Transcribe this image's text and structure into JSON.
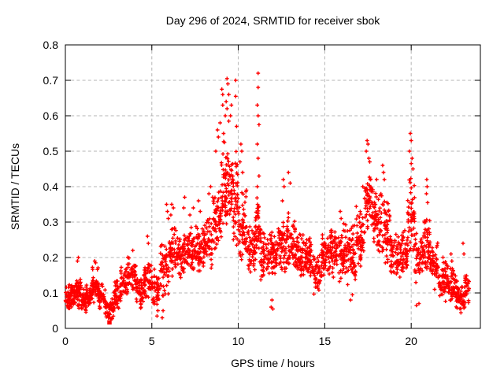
{
  "chart_data": {
    "type": "scatter",
    "title": "Day 296 of 2024, SRMTID for receiver sbok",
    "xlabel": "GPS time / hours",
    "ylabel": "SRMTID / TECUs",
    "xlim": [
      0,
      24
    ],
    "ylim": [
      0,
      0.8
    ],
    "xticks": [
      {
        "v": 0,
        "label": "0"
      },
      {
        "v": 5,
        "label": "5"
      },
      {
        "v": 10,
        "label": "10"
      },
      {
        "v": 15,
        "label": "15"
      },
      {
        "v": 20,
        "label": "20"
      }
    ],
    "yticks": [
      {
        "v": 0,
        "label": "0"
      },
      {
        "v": 0.1,
        "label": "0.1"
      },
      {
        "v": 0.2,
        "label": "0.2"
      },
      {
        "v": 0.3,
        "label": "0.3"
      },
      {
        "v": 0.4,
        "label": "0.4"
      },
      {
        "v": 0.5,
        "label": "0.5"
      },
      {
        "v": 0.6,
        "label": "0.6"
      },
      {
        "v": 0.7,
        "label": "0.7"
      },
      {
        "v": 0.8,
        "label": "0.8"
      }
    ],
    "grid": true,
    "legend": "none",
    "colors": {
      "points": "#ff0000",
      "grid": "#b4b4b4",
      "axis": "#000000",
      "background": "#ffffff"
    },
    "seed": 1296,
    "series": [
      {
        "name": "srmtid-points",
        "marker": "plus",
        "color": "#ff0000",
        "band_segments": [
          [
            0.0,
            0.3,
            0.05,
            0.13,
            35
          ],
          [
            0.3,
            0.6,
            0.04,
            0.14,
            40
          ],
          [
            0.6,
            0.9,
            0.05,
            0.17,
            40
          ],
          [
            0.9,
            1.2,
            0.04,
            0.12,
            40
          ],
          [
            1.2,
            1.5,
            0.05,
            0.13,
            40
          ],
          [
            1.5,
            1.9,
            0.06,
            0.18,
            45
          ],
          [
            1.9,
            2.3,
            0.05,
            0.13,
            45
          ],
          [
            2.3,
            2.8,
            0.02,
            0.09,
            50
          ],
          [
            2.8,
            3.2,
            0.05,
            0.14,
            45
          ],
          [
            3.2,
            3.6,
            0.08,
            0.18,
            45
          ],
          [
            3.6,
            4.1,
            0.09,
            0.21,
            50
          ],
          [
            4.1,
            4.5,
            0.05,
            0.15,
            45
          ],
          [
            4.5,
            5.0,
            0.08,
            0.2,
            50
          ],
          [
            5.0,
            5.5,
            0.05,
            0.17,
            45
          ],
          [
            5.5,
            6.0,
            0.08,
            0.26,
            50
          ],
          [
            6.0,
            6.5,
            0.12,
            0.3,
            55
          ],
          [
            6.5,
            7.0,
            0.13,
            0.28,
            55
          ],
          [
            7.0,
            7.5,
            0.14,
            0.29,
            55
          ],
          [
            7.5,
            8.0,
            0.15,
            0.3,
            55
          ],
          [
            8.0,
            8.5,
            0.16,
            0.32,
            55
          ],
          [
            8.5,
            9.0,
            0.2,
            0.42,
            60
          ],
          [
            9.0,
            9.5,
            0.25,
            0.55,
            65
          ],
          [
            9.5,
            10.0,
            0.2,
            0.52,
            65
          ],
          [
            10.0,
            10.5,
            0.17,
            0.4,
            55
          ],
          [
            10.5,
            11.0,
            0.15,
            0.3,
            55
          ],
          [
            11.0,
            11.3,
            0.17,
            0.38,
            40
          ],
          [
            11.3,
            11.8,
            0.12,
            0.28,
            50
          ],
          [
            11.8,
            12.3,
            0.13,
            0.28,
            55
          ],
          [
            12.3,
            12.8,
            0.15,
            0.32,
            55
          ],
          [
            12.8,
            13.3,
            0.15,
            0.33,
            55
          ],
          [
            13.3,
            13.8,
            0.13,
            0.28,
            55
          ],
          [
            13.8,
            14.3,
            0.13,
            0.27,
            55
          ],
          [
            14.3,
            14.8,
            0.09,
            0.22,
            50
          ],
          [
            14.8,
            15.3,
            0.13,
            0.28,
            55
          ],
          [
            15.3,
            15.8,
            0.14,
            0.29,
            55
          ],
          [
            15.8,
            16.3,
            0.13,
            0.3,
            55
          ],
          [
            16.3,
            16.8,
            0.12,
            0.3,
            55
          ],
          [
            16.8,
            17.3,
            0.16,
            0.35,
            55
          ],
          [
            17.3,
            17.8,
            0.24,
            0.46,
            60
          ],
          [
            17.8,
            18.3,
            0.2,
            0.4,
            55
          ],
          [
            18.3,
            18.8,
            0.17,
            0.37,
            55
          ],
          [
            18.8,
            19.3,
            0.14,
            0.28,
            55
          ],
          [
            19.3,
            19.8,
            0.14,
            0.29,
            50
          ],
          [
            19.8,
            20.2,
            0.2,
            0.44,
            50
          ],
          [
            20.2,
            20.7,
            0.12,
            0.28,
            50
          ],
          [
            20.7,
            21.1,
            0.13,
            0.32,
            50
          ],
          [
            21.1,
            21.6,
            0.1,
            0.25,
            50
          ],
          [
            21.6,
            22.1,
            0.07,
            0.21,
            50
          ],
          [
            22.1,
            22.6,
            0.06,
            0.18,
            55
          ],
          [
            22.6,
            23.1,
            0.04,
            0.14,
            60
          ],
          [
            23.1,
            23.35,
            0.06,
            0.16,
            30
          ]
        ],
        "spike_points": [
          [
            0.7,
            0.19
          ],
          [
            0.75,
            0.2
          ],
          [
            1.7,
            0.19
          ],
          [
            1.75,
            0.185
          ],
          [
            3.9,
            0.22
          ],
          [
            4.75,
            0.26
          ],
          [
            4.8,
            0.24
          ],
          [
            5.3,
            0.035
          ],
          [
            5.35,
            0.05
          ],
          [
            5.6,
            0.03
          ],
          [
            5.65,
            0.05
          ],
          [
            5.85,
            0.35
          ],
          [
            5.9,
            0.33
          ],
          [
            5.95,
            0.31
          ],
          [
            6.15,
            0.35
          ],
          [
            6.25,
            0.34
          ],
          [
            6.1,
            0.32
          ],
          [
            6.9,
            0.37
          ],
          [
            6.85,
            0.34
          ],
          [
            7.2,
            0.32
          ],
          [
            7.4,
            0.34
          ],
          [
            7.7,
            0.36
          ],
          [
            7.8,
            0.33
          ],
          [
            8.3,
            0.38
          ],
          [
            8.4,
            0.4
          ],
          [
            8.7,
            0.5
          ],
          [
            8.8,
            0.56
          ],
          [
            8.85,
            0.54
          ],
          [
            8.95,
            0.58
          ],
          [
            9.05,
            0.675
          ],
          [
            9.1,
            0.66
          ],
          [
            9.1,
            0.63
          ],
          [
            9.15,
            0.55
          ],
          [
            9.2,
            0.525
          ],
          [
            9.25,
            0.6
          ],
          [
            9.3,
            0.64
          ],
          [
            9.35,
            0.705
          ],
          [
            9.4,
            0.69
          ],
          [
            9.45,
            0.66
          ],
          [
            9.35,
            0.62
          ],
          [
            9.45,
            0.585
          ],
          [
            9.6,
            0.63
          ],
          [
            9.55,
            0.6
          ],
          [
            9.85,
            0.7
          ],
          [
            9.85,
            0.655
          ],
          [
            9.9,
            0.57
          ],
          [
            10.15,
            0.52
          ],
          [
            10.2,
            0.5
          ],
          [
            10.1,
            0.47
          ],
          [
            10.25,
            0.44
          ],
          [
            11.15,
            0.72
          ],
          [
            11.15,
            0.68
          ],
          [
            11.1,
            0.63
          ],
          [
            11.15,
            0.6
          ],
          [
            11.2,
            0.575
          ],
          [
            11.1,
            0.52
          ],
          [
            11.15,
            0.48
          ],
          [
            11.2,
            0.43
          ],
          [
            11.1,
            0.4
          ],
          [
            11.9,
            0.06
          ],
          [
            11.95,
            0.08
          ],
          [
            12.0,
            0.055
          ],
          [
            12.6,
            0.42
          ],
          [
            12.65,
            0.4
          ],
          [
            12.55,
            0.36
          ],
          [
            12.9,
            0.44
          ],
          [
            13.0,
            0.41
          ],
          [
            15.9,
            0.33
          ],
          [
            15.95,
            0.31
          ],
          [
            16.5,
            0.08
          ],
          [
            16.6,
            0.095
          ],
          [
            17.2,
            0.4
          ],
          [
            17.45,
            0.53
          ],
          [
            17.5,
            0.52
          ],
          [
            17.4,
            0.5
          ],
          [
            17.55,
            0.48
          ],
          [
            17.6,
            0.47
          ],
          [
            18.0,
            0.42
          ],
          [
            18.35,
            0.46
          ],
          [
            18.4,
            0.44
          ],
          [
            18.45,
            0.42
          ],
          [
            19.95,
            0.55
          ],
          [
            20.0,
            0.53
          ],
          [
            19.9,
            0.5
          ],
          [
            20.05,
            0.48
          ],
          [
            20.0,
            0.465
          ],
          [
            20.1,
            0.45
          ],
          [
            20.3,
            0.065
          ],
          [
            20.45,
            0.07
          ],
          [
            20.9,
            0.42
          ],
          [
            20.92,
            0.4
          ],
          [
            20.88,
            0.38
          ],
          [
            20.95,
            0.355
          ],
          [
            22.3,
            0.21
          ],
          [
            22.35,
            0.19
          ],
          [
            23.0,
            0.24
          ],
          [
            23.05,
            0.21
          ]
        ]
      },
      {
        "name": "flag-point",
        "marker": "filled-square",
        "color": "#ff0000",
        "points": [
          [
            2.55,
            0.017
          ]
        ]
      }
    ]
  }
}
